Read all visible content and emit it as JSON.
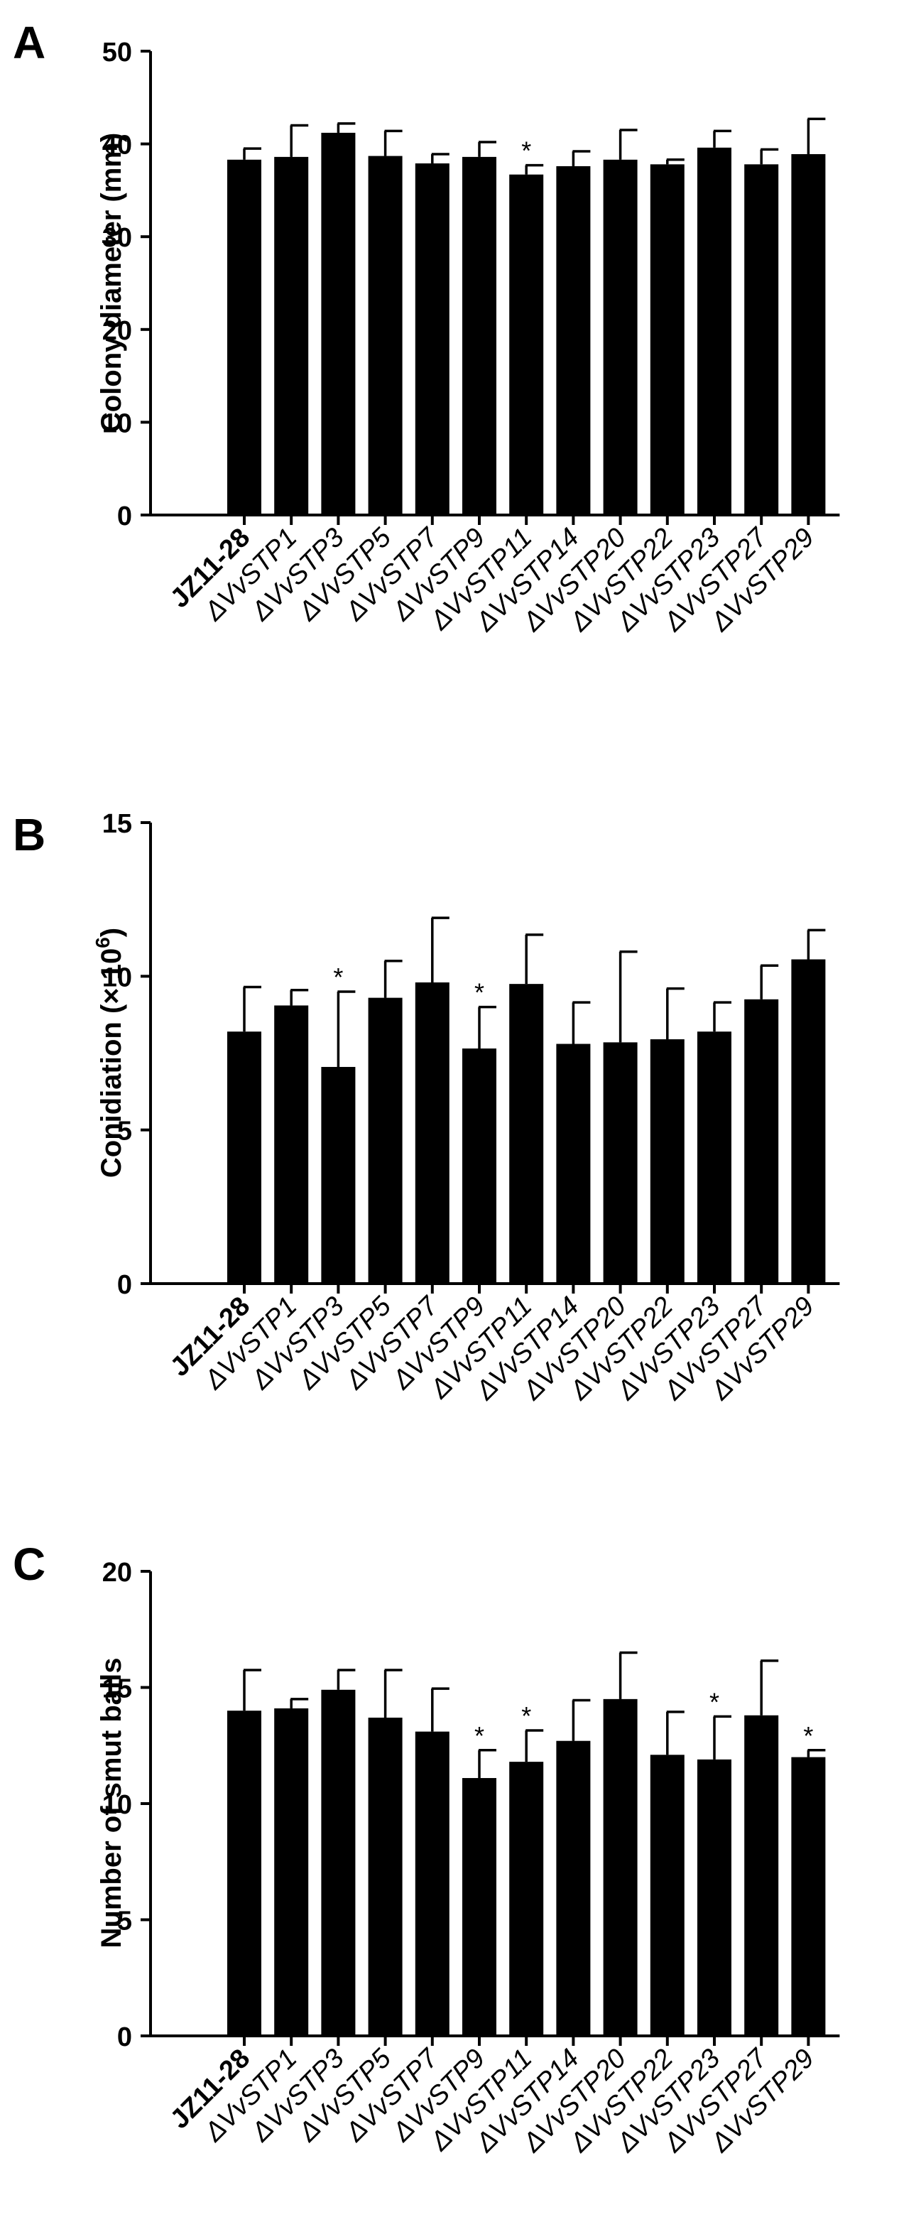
{
  "chart_data": [
    {
      "type": "bar",
      "panel": "A",
      "categories": [
        "JZ11-28",
        "ΔVvSTP1",
        "ΔVvSTP3",
        "ΔVvSTP5",
        "ΔVvSTP7",
        "ΔVvSTP9",
        "ΔVvSTP11",
        "ΔVvSTP14",
        "ΔVvSTP20",
        "ΔVvSTP22",
        "ΔVvSTP23",
        "ΔVvSTP27",
        "ΔVvSTP29"
      ],
      "values": [
        38.3,
        38.6,
        41.2,
        38.7,
        37.9,
        38.6,
        36.7,
        37.6,
        38.3,
        37.8,
        39.6,
        37.8,
        38.9
      ],
      "errors": [
        1.2,
        3.4,
        1.0,
        2.7,
        1.0,
        1.6,
        1.0,
        1.6,
        3.2,
        0.5,
        1.8,
        1.6,
        3.8
      ],
      "significant": [
        false,
        false,
        false,
        false,
        false,
        false,
        true,
        false,
        false,
        false,
        false,
        false,
        false
      ],
      "sig_marker": "*",
      "ylabel": "Colony diameter (mm)",
      "ylim": [
        0,
        50
      ],
      "yticks": [
        "0",
        "10",
        "20",
        "30",
        "40",
        "50"
      ],
      "bold_categories": [
        "JZ11-28"
      ]
    },
    {
      "type": "bar",
      "panel": "B",
      "categories": [
        "JZ11-28",
        "ΔVvSTP1",
        "ΔVvSTP3",
        "ΔVvSTP5",
        "ΔVvSTP7",
        "ΔVvSTP9",
        "ΔVvSTP11",
        "ΔVvSTP14",
        "ΔVvSTP20",
        "ΔVvSTP22",
        "ΔVvSTP23",
        "ΔVvSTP27",
        "ΔVvSTP29"
      ],
      "values": [
        8.2,
        9.05,
        7.05,
        9.3,
        9.8,
        7.65,
        9.75,
        7.8,
        7.85,
        7.95,
        8.2,
        9.25,
        10.55
      ],
      "errors": [
        1.45,
        0.5,
        2.45,
        1.2,
        2.1,
        1.35,
        1.6,
        1.35,
        2.95,
        1.65,
        0.95,
        1.1,
        0.95
      ],
      "significant": [
        false,
        false,
        true,
        false,
        false,
        true,
        false,
        false,
        false,
        false,
        false,
        false,
        false
      ],
      "sig_marker": "*",
      "ylabel": "Conidiation (× 10",
      "ylabel_sup": "6",
      "ylabel_end": ")",
      "ylim": [
        0,
        15
      ],
      "yticks": [
        "0",
        "5",
        "10",
        "15"
      ],
      "bold_categories": [
        "JZ11-28"
      ]
    },
    {
      "type": "bar",
      "panel": "C",
      "categories": [
        "JZ11-28",
        "ΔVvSTP1",
        "ΔVvSTP3",
        "ΔVvSTP5",
        "ΔVvSTP7",
        "ΔVvSTP9",
        "ΔVvSTP11",
        "ΔVvSTP14",
        "ΔVvSTP20",
        "ΔVvSTP22",
        "ΔVvSTP23",
        "ΔVvSTP27",
        "ΔVvSTP29"
      ],
      "values": [
        14.0,
        14.1,
        14.9,
        13.7,
        13.1,
        11.1,
        11.8,
        12.7,
        14.5,
        12.1,
        11.9,
        13.8,
        12.0
      ],
      "errors": [
        1.75,
        0.4,
        0.85,
        2.05,
        1.85,
        1.2,
        1.35,
        1.75,
        2.0,
        1.85,
        1.85,
        2.35,
        0.3
      ],
      "significant": [
        false,
        false,
        false,
        false,
        false,
        true,
        true,
        false,
        false,
        false,
        true,
        false,
        true
      ],
      "sig_marker": "*",
      "ylabel": "Number of smut balls",
      "ylim": [
        0,
        20
      ],
      "yticks": [
        "0",
        "5",
        "10",
        "15",
        "20"
      ],
      "bold_categories": [
        "JZ11-28"
      ]
    }
  ],
  "panels": [
    "A",
    "B",
    "C"
  ]
}
